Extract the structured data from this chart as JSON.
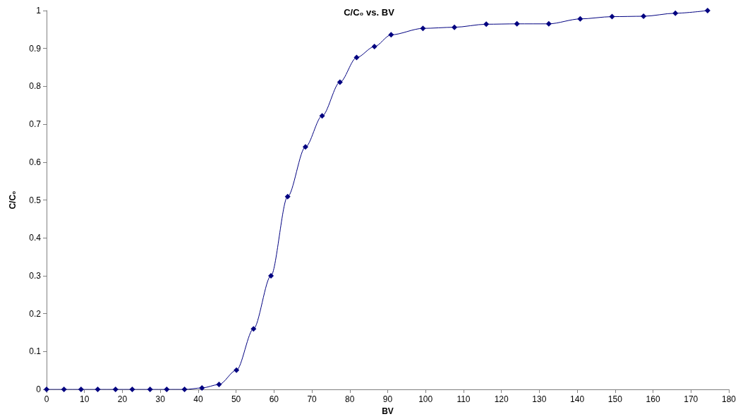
{
  "chart_data": {
    "type": "line",
    "title": "C/C₀ vs. BV",
    "xlabel": "BV",
    "ylabel": "C/C₀",
    "x": [
      0,
      4.6,
      9.1,
      13.5,
      18.2,
      22.6,
      27.3,
      31.7,
      36.4,
      41.0,
      45.5,
      50.1,
      54.6,
      59.2,
      63.6,
      68.3,
      72.7,
      77.4,
      81.8,
      86.5,
      90.9,
      99.3,
      107.6,
      116.0,
      124.1,
      132.5,
      140.8,
      149.2,
      157.5,
      165.9,
      174.4
    ],
    "series": [
      {
        "color": "#000080",
        "values": [
          0,
          0,
          0,
          0,
          0,
          0,
          0,
          0,
          0,
          0.004,
          0.013,
          0.051,
          0.16,
          0.3,
          0.509,
          0.64,
          0.722,
          0.811,
          0.876,
          0.905,
          0.936,
          0.953,
          0.956,
          0.964,
          0.965,
          0.965,
          0.978,
          0.984,
          0.985,
          0.993,
          1.0
        ]
      }
    ],
    "xlim": [
      0,
      180
    ],
    "xticks": [
      0,
      10,
      20,
      30,
      40,
      50,
      60,
      70,
      80,
      90,
      100,
      110,
      120,
      130,
      140,
      150,
      160,
      170,
      180
    ],
    "ylim": [
      0,
      1
    ],
    "yticks": [
      0,
      0.1,
      0.2,
      0.3,
      0.4,
      0.5,
      0.6,
      0.7,
      0.8,
      0.9,
      1
    ],
    "grid": false,
    "marker": "diamond",
    "line_style": "solid"
  }
}
